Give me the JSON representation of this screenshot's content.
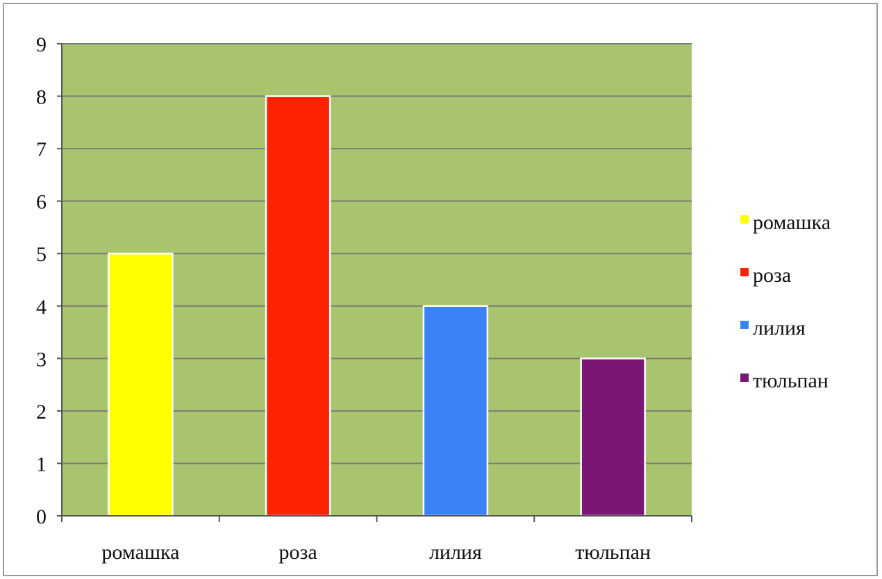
{
  "chart_data": {
    "type": "bar",
    "title": "",
    "xlabel": "",
    "ylabel": "",
    "categories": [
      "ромашка",
      "роза",
      "лилия",
      "тюльпан"
    ],
    "values": [
      5,
      8,
      4,
      3
    ],
    "colors": [
      "#ffff00",
      "#ff2200",
      "#3b82f6",
      "#7a1775"
    ],
    "ylim": [
      0,
      9
    ],
    "yticks": [
      "0",
      "1",
      "2",
      "3",
      "4",
      "5",
      "6",
      "7",
      "8",
      "9"
    ],
    "grid": true,
    "plot_background": "#a9c46e",
    "grid_color": "#7a7a7a",
    "legend": {
      "position": "right",
      "entries": [
        "ромашка",
        "роза",
        "лилия",
        "тюльпан"
      ]
    }
  }
}
